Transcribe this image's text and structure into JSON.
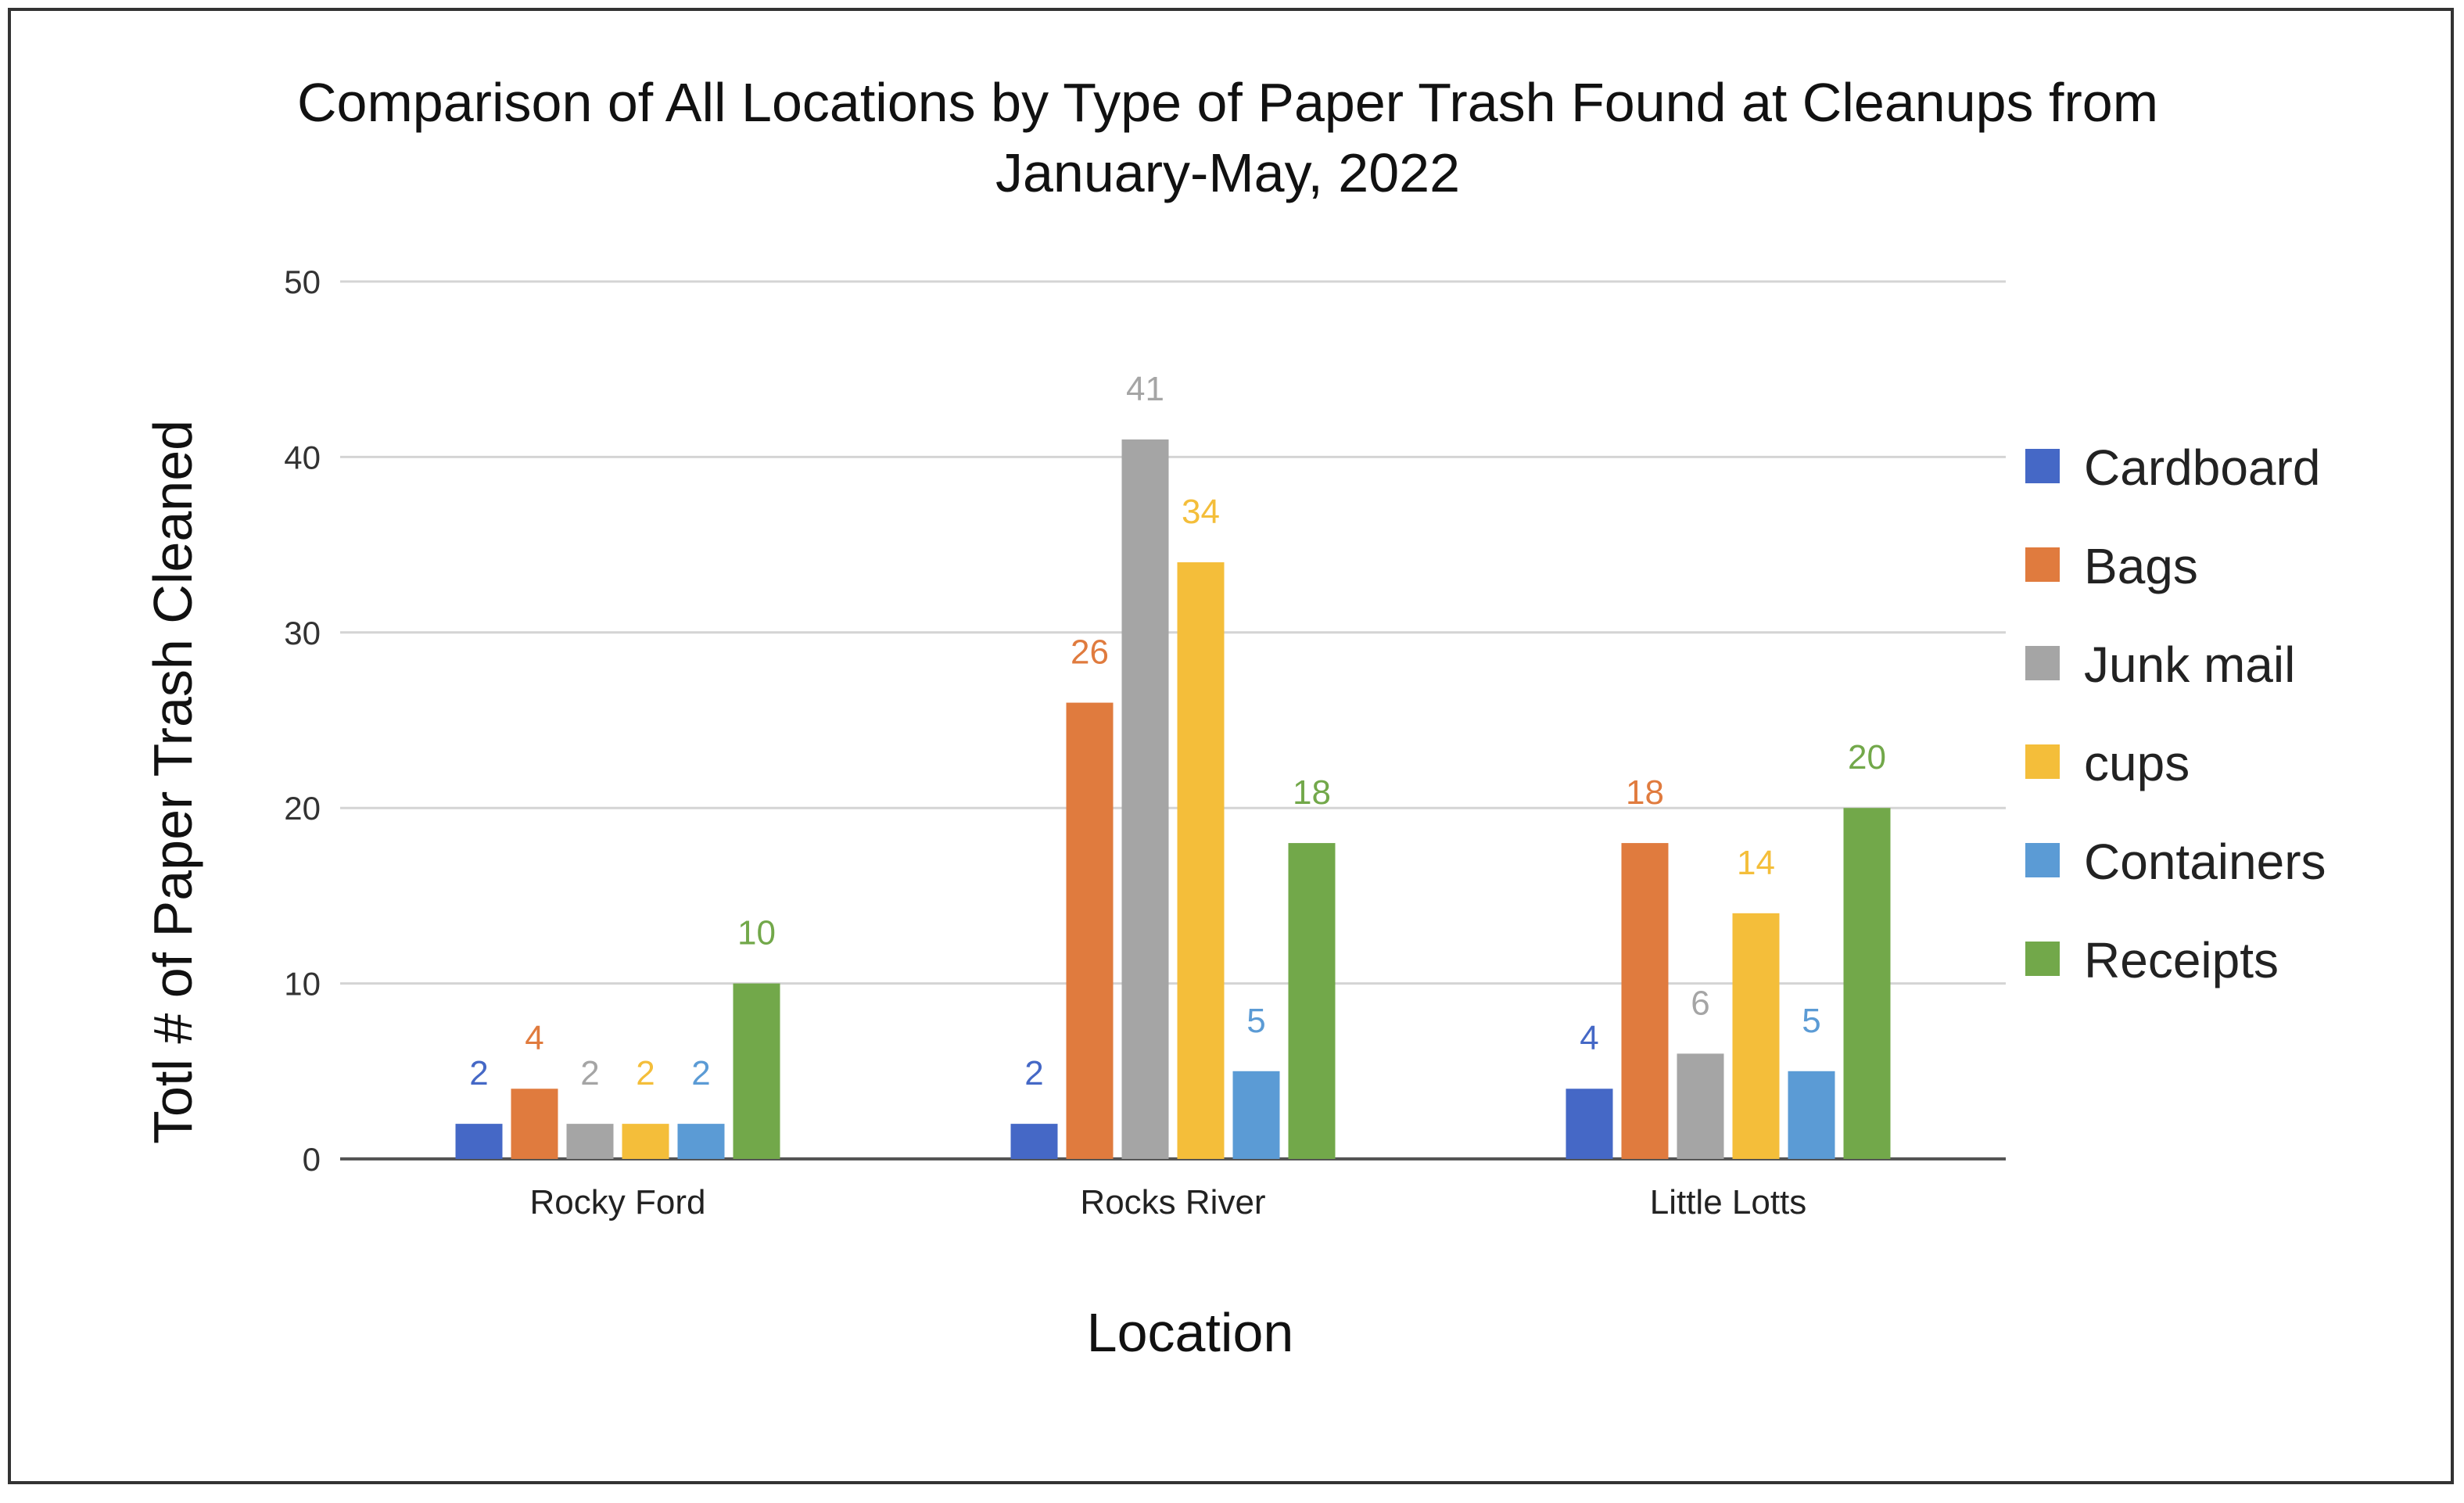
{
  "chart_data": {
    "type": "bar",
    "title": "Comparison of All Locations by Type of Paper Trash Found at Cleanups from January-May, 2022",
    "title_lines": [
      "Comparison of All Locations by Type of Paper Trash Found at Cleanups from",
      "January-May, 2022"
    ],
    "xlabel": "Location",
    "ylabel": "Totl # of Paper Trash Cleaned",
    "ylim": [
      0,
      50
    ],
    "yticks": [
      0,
      10,
      20,
      30,
      40,
      50
    ],
    "grid": true,
    "legend_position": "right",
    "categories": [
      "Rocky Ford",
      "Rocks River",
      "Little Lotts"
    ],
    "series": [
      {
        "name": "Cardboard",
        "color": "#4568C6",
        "values": [
          2,
          2,
          4
        ]
      },
      {
        "name": "Bags",
        "color": "#E07B3E",
        "values": [
          4,
          26,
          18
        ]
      },
      {
        "name": "Junk mail",
        "color": "#A5A5A5",
        "values": [
          2,
          41,
          6
        ]
      },
      {
        "name": "cups",
        "color": "#F4BE3A",
        "values": [
          2,
          34,
          14
        ]
      },
      {
        "name": "Containers",
        "color": "#5B9BD5",
        "values": [
          2,
          5,
          5
        ]
      },
      {
        "name": "Receipts",
        "color": "#72A84A",
        "values": [
          10,
          18,
          20
        ]
      }
    ]
  }
}
